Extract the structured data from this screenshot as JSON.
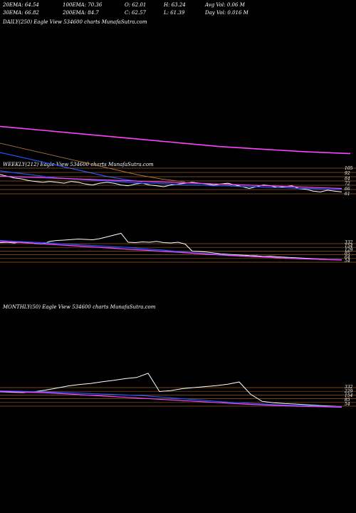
{
  "header": {
    "row1": [
      {
        "label": "20EMA: 64.54"
      },
      {
        "label": "100EMA: 70.36"
      },
      {
        "label": "O: 62.01"
      },
      {
        "label": "H: 63.24"
      },
      {
        "label": "Avg Vol: 0.06  M"
      }
    ],
    "row2": [
      {
        "label": "30EMA: 66.82"
      },
      {
        "label": "200EMA: 84.7"
      },
      {
        "label": "C: 62.57"
      },
      {
        "label": "L: 61.39"
      },
      {
        "label": "Day Vol: 0.016  M"
      }
    ]
  },
  "chart_data": [
    {
      "type": "line",
      "panel": "daily",
      "label": "DAILY(250) Eagle  View  534600  charts MunafaSutra.com",
      "series": [
        {
          "color": "#ff44ff",
          "values": [
            105,
            102,
            99,
            96,
            93,
            90,
            88,
            86,
            84.7
          ]
        },
        {
          "color": "#2255ff",
          "values": [
            100,
            96,
            92,
            88,
            84,
            80,
            76,
            73,
            70.4
          ]
        },
        {
          "color": "#c08040",
          "values": [
            96,
            92,
            88,
            84,
            80,
            76,
            72,
            69,
            66.8
          ]
        }
      ]
    },
    {
      "type": "line",
      "panel": "weekly",
      "label": "WEEKLY(212) Eagle  View  534600  charts MunafaSutra.com",
      "right_ticks": [
        "105",
        "92",
        "84",
        "72",
        "66",
        "61"
      ],
      "colors": {
        "price": "#ffffff",
        "ema_fast": "#2255ff",
        "ema_slow": "#ff44ff",
        "hline": "#c87830"
      },
      "price": [
        82,
        80,
        78,
        77,
        75,
        74,
        73,
        74,
        73,
        72,
        74,
        73,
        71,
        70,
        72,
        73,
        72,
        70,
        69,
        71,
        72,
        70,
        69,
        68,
        70,
        71,
        72,
        73,
        72,
        71,
        70,
        71,
        72,
        70,
        68,
        66,
        68,
        70,
        69,
        67,
        68,
        69,
        66,
        65,
        63,
        62,
        64,
        63,
        62
      ]
    },
    {
      "type": "line",
      "panel": "weekly-2",
      "right_ticks": [
        "332",
        "154",
        "129",
        "85",
        "64",
        "54"
      ],
      "colors": {
        "price": "#ffffff",
        "ema_fast": "#2255ff",
        "ema_slow": "#ff44ff",
        "hline": "#c87830"
      },
      "price": [
        158,
        160,
        156,
        162,
        158,
        152,
        150,
        165,
        170,
        172,
        175,
        178,
        176,
        174,
        180,
        190,
        200,
        210,
        160,
        158,
        162,
        160,
        165,
        158,
        156,
        160,
        150,
        110,
        108,
        105,
        100,
        95,
        92,
        90,
        88,
        85,
        84,
        80,
        82,
        78,
        76,
        74,
        72,
        70,
        68,
        66,
        64,
        63,
        62
      ]
    },
    {
      "type": "line",
      "panel": "monthly",
      "label": "MONTHLY(50) Eagle  View  534600  charts MunafaSutra.com",
      "right_ticks": [
        "332",
        "229",
        "154",
        "85",
        "54"
      ],
      "colors": {
        "price": "#ffffff",
        "ema_fast": "#2255ff",
        "ema_slow": "#ff44ff",
        "hline": "#c87830"
      },
      "price": [
        168,
        164,
        162,
        168,
        180,
        195,
        210,
        220,
        228,
        240,
        250,
        262,
        270,
        300,
        170,
        176,
        190,
        198,
        205,
        212,
        222,
        238,
        150,
        100,
        90,
        84,
        80,
        75,
        70,
        66,
        62
      ]
    }
  ]
}
